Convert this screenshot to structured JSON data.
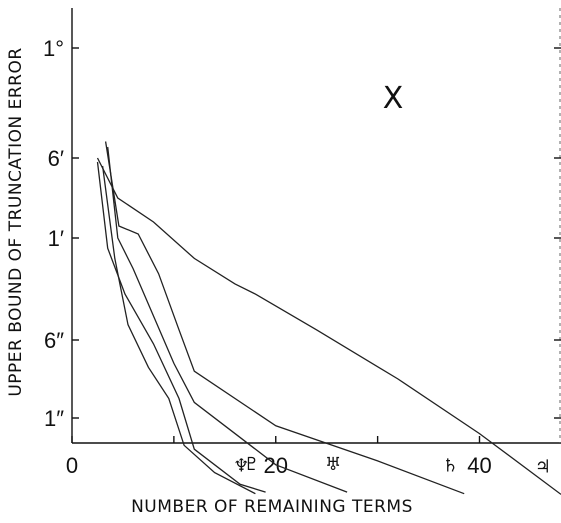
{
  "chart_data": {
    "type": "line",
    "xlabel": "NUMBER OF REMAINING TERMS",
    "ylabel": "UPPER BOUND OF TRUNCATION ERROR",
    "xlim": [
      0,
      48
    ],
    "x_ticks": [
      0,
      20,
      40
    ],
    "y_ticks": [
      "1°",
      "6′",
      "1′",
      "6″",
      "1″"
    ],
    "annotation": "X",
    "grid": false,
    "series": [
      {
        "name": "♆",
        "points": [
          [
            3.0,
            1.1
          ],
          [
            4.2,
            2.2
          ],
          [
            5.5,
            2.85
          ],
          [
            7.5,
            3.35
          ],
          [
            9.5,
            3.75
          ],
          [
            11.0,
            4.35
          ],
          [
            14.0,
            4.7
          ],
          [
            18.0,
            4.97
          ]
        ]
      },
      {
        "name": "♇",
        "points": [
          [
            2.5,
            1.05
          ],
          [
            3.5,
            2.1
          ],
          [
            5.2,
            2.55
          ],
          [
            8.0,
            3.05
          ],
          [
            10.5,
            3.75
          ],
          [
            12.0,
            4.4
          ],
          [
            16.5,
            4.85
          ],
          [
            19.0,
            4.95
          ]
        ]
      },
      {
        "name": "♅",
        "points": [
          [
            3.5,
            0.9
          ],
          [
            4.5,
            2.0
          ],
          [
            6.0,
            2.3
          ],
          [
            10.0,
            3.3
          ],
          [
            12.0,
            3.8
          ],
          [
            20.0,
            4.6
          ],
          [
            27.0,
            4.95
          ]
        ]
      },
      {
        "name": "♄",
        "points": [
          [
            3.3,
            0.85
          ],
          [
            4.6,
            1.85
          ],
          [
            6.5,
            1.95
          ],
          [
            8.5,
            2.35
          ],
          [
            10.5,
            2.9
          ],
          [
            12.0,
            3.4
          ],
          [
            20.0,
            4.1
          ],
          [
            30.0,
            4.55
          ],
          [
            38.5,
            4.97
          ]
        ]
      },
      {
        "name": "♃",
        "points": [
          [
            2.5,
            1.0
          ],
          [
            4.5,
            1.5
          ],
          [
            8.0,
            1.8
          ],
          [
            12.0,
            2.2
          ],
          [
            16.0,
            2.45
          ],
          [
            18.0,
            2.55
          ],
          [
            24.0,
            2.9
          ],
          [
            32.0,
            3.5
          ],
          [
            40.0,
            4.2
          ],
          [
            48.0,
            4.98
          ]
        ]
      }
    ]
  }
}
